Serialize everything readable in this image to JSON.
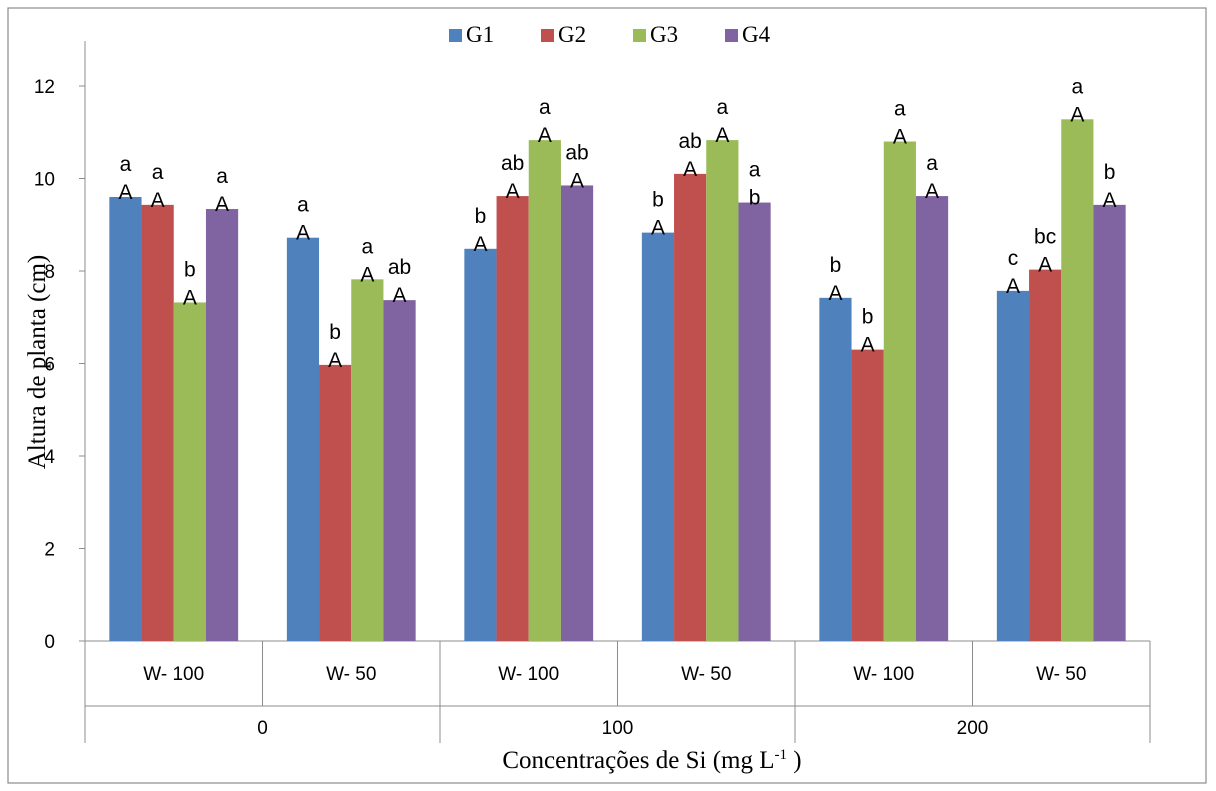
{
  "chart_data": {
    "type": "bar",
    "ylabel": "Altura de planta (cm)",
    "xlabel": {
      "text": "Concentrações de Si (mg L",
      "superscript": "-1",
      "suffix": " )"
    },
    "ylim": [
      0,
      12
    ],
    "yticks": [
      "0",
      "2",
      "4",
      "6",
      "8",
      "10",
      "12"
    ],
    "grid": false,
    "legend_position": "top",
    "x_groups": [
      {
        "label": "0",
        "subcategories": [
          "W- 100",
          "W- 50"
        ]
      },
      {
        "label": "100",
        "subcategories": [
          "W- 100",
          "W- 50"
        ]
      },
      {
        "label": "200",
        "subcategories": [
          "W- 100",
          "W- 50"
        ]
      }
    ],
    "categories": [
      "W- 100",
      "W- 50",
      "W- 100",
      "W- 50",
      "W- 100",
      "W- 50"
    ],
    "series": [
      {
        "name": "G1",
        "color": "#4F81BD",
        "values": [
          9.6,
          8.72,
          8.48,
          8.83,
          7.42,
          7.57
        ],
        "upper_labels": [
          "a",
          "a",
          "b",
          "b",
          "b",
          "c"
        ],
        "lower_labels": [
          "A",
          "A",
          "A",
          "A",
          "A",
          "A"
        ]
      },
      {
        "name": "G2",
        "color": "#C0504D",
        "values": [
          9.43,
          5.97,
          9.62,
          10.1,
          6.3,
          8.03
        ],
        "upper_labels": [
          "a",
          "b",
          "ab",
          "ab",
          "b",
          "bc"
        ],
        "lower_labels": [
          "A",
          "A",
          "A",
          "A",
          "A",
          "A"
        ]
      },
      {
        "name": "G3",
        "color": "#9BBB59",
        "values": [
          7.32,
          7.82,
          10.83,
          10.83,
          10.8,
          11.28
        ],
        "upper_labels": [
          "b",
          "a",
          "a",
          "a",
          "a",
          "a"
        ],
        "lower_labels": [
          "A",
          "A",
          "A",
          "A",
          "A",
          "A"
        ]
      },
      {
        "name": "G4",
        "color": "#8064A2",
        "values": [
          9.34,
          7.37,
          9.85,
          9.48,
          9.62,
          9.43
        ],
        "upper_labels": [
          "a",
          "ab",
          "ab",
          "a",
          "a",
          "b"
        ],
        "lower_labels": [
          "A",
          "A",
          "A",
          "b",
          "A",
          "A"
        ]
      }
    ]
  }
}
